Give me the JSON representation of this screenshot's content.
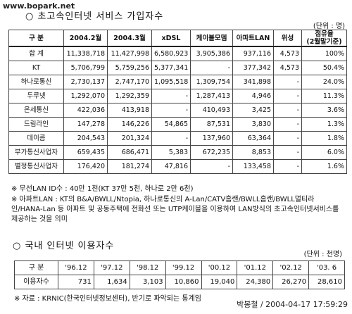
{
  "watermark": "www.bopark.net",
  "section1": {
    "title": "○ 초고속인터넷 서비스 가입자수",
    "unit": "(단위 : 명)",
    "table": {
      "header": [
        "구  분",
        "2004.2월",
        "2004.3월",
        "xDSL",
        "케이블모뎀",
        "아파트LAN",
        "위성",
        "점유율\n(2월말기준)"
      ],
      "rows": [
        [
          "합  계",
          "11,338,718",
          "11,427,998",
          "6,580,923",
          "3,905,386",
          "937,116",
          "4,573",
          "100%"
        ],
        [
          "KT",
          "5,706,799",
          "5,759,256",
          "5,377,341",
          "-",
          "377,342",
          "4,573",
          "50.4%"
        ],
        [
          "하나로통신",
          "2,730,137",
          "2,747,170",
          "1,095,518",
          "1,309,754",
          "341,898",
          "-",
          "24.0%"
        ],
        [
          "두루넷",
          "1,292,070",
          "1,292,359",
          "-",
          "1,287,413",
          "4,946",
          "-",
          "11.3%"
        ],
        [
          "온세통신",
          "422,036",
          "413,918",
          "-",
          "410,493",
          "3,425",
          "-",
          "3.6%"
        ],
        [
          "드림라인",
          "147,278",
          "146,226",
          "54,865",
          "87,531",
          "3,830",
          "-",
          "1.3%"
        ],
        [
          "데이콤",
          "204,543",
          "201,324",
          "-",
          "137,960",
          "63,364",
          "-",
          "1.8%"
        ],
        [
          "부가통신사업자",
          "659,435",
          "686,471",
          "5,383",
          "672,235",
          "8,853",
          "-",
          "6.0%"
        ],
        [
          "별정통신사업자",
          "176,420",
          "181,274",
          "47,816",
          "-",
          "133,458",
          "-",
          "1.6%"
        ]
      ]
    },
    "notes": [
      "※ 무선LAN ID수 : 40만 1천(KT 37만 5천, 하나로 2만 6천)",
      "※ 아파트LAN : KT의 B&A/BWLL/Ntopia, 하나로통신의 A-Lan/CATV홈랜/BWLL홈랜/BWLL멀티라인/HANA-Lan 등 아파트 및 공동주택에 전화선 또는 UTP케이블을 이용하여 LAN방식의 초고속인터넷서비스를 제공하는 것을 의미"
    ]
  },
  "section2": {
    "title": "○ 국내 인터넷 이용자수",
    "unit": "(단위 : 천명)",
    "table": {
      "header": [
        "구  분",
        "'96.12",
        "'97.12",
        "'98.12",
        "'99.12",
        "'00.12",
        "'01.12",
        "'02.12",
        "'03. 6"
      ],
      "rows": [
        [
          "이용자수",
          "731",
          "1,634",
          "3,103",
          "10,860",
          "19,040",
          "24,380",
          "26,270",
          "28,610"
        ]
      ]
    },
    "source": "※ 자료 : KRNIC(한국인터넷정보센터), 반기로 파악되는 통계임"
  },
  "signature": "박봉철 / 2004-04-17 17:59:29"
}
